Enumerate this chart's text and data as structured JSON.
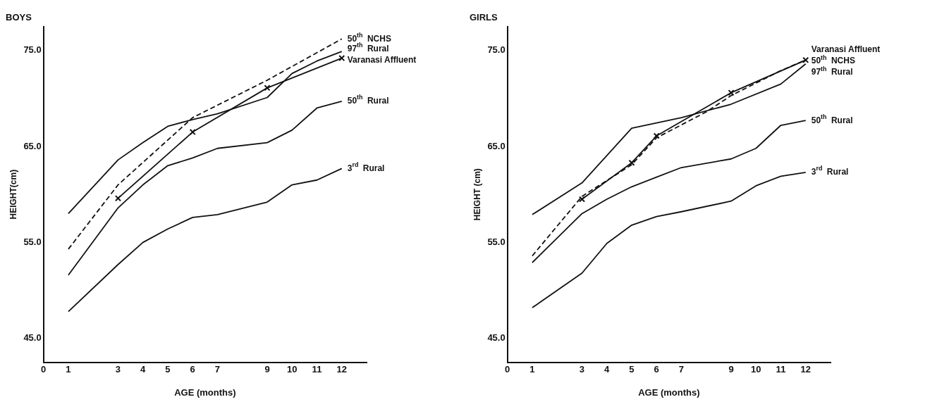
{
  "chart_data": [
    {
      "type": "line",
      "title": "BOYS",
      "xlabel": "AGE (months)",
      "ylabel": "HEIGHT(cm)",
      "xlim": [
        0,
        13
      ],
      "xticks": [
        0,
        1,
        3,
        4,
        5,
        6,
        7,
        9,
        10,
        11,
        12
      ],
      "ylim": [
        42.5,
        77.5
      ],
      "yticks": [
        {
          "value": 45,
          "label": "45.0"
        },
        {
          "value": 55,
          "label": "55.0"
        },
        {
          "value": 65,
          "label": "65.0"
        },
        {
          "value": 75,
          "label": "75.0"
        }
      ],
      "grid": false,
      "legend": false,
      "series": [
        {
          "name": "50$^{th}$ NCHS",
          "color": "#111111",
          "line_style": "dashed",
          "marker": "none",
          "x": [
            1,
            3,
            6,
            9,
            12
          ],
          "values": [
            54.3,
            61.0,
            68.0,
            71.9,
            76.2
          ]
        },
        {
          "name": "97$^{th}$ Rural",
          "color": "#111111",
          "line_style": "solid",
          "marker": "none",
          "x": [
            1,
            3,
            4,
            5,
            6,
            7,
            9,
            10,
            11,
            12
          ],
          "values": [
            58.0,
            63.6,
            65.4,
            67.1,
            67.8,
            68.4,
            70.1,
            72.6,
            73.9,
            74.9
          ]
        },
        {
          "name": "Varanasi Affluent",
          "color": "#111111",
          "line_style": "solid",
          "marker": "cross",
          "x": [
            3,
            6,
            9,
            12
          ],
          "values": [
            59.6,
            66.5,
            71.1,
            74.2
          ]
        },
        {
          "name": "50$^{th}$ Rural",
          "color": "#111111",
          "line_style": "solid",
          "marker": "none",
          "x": [
            1,
            3,
            4,
            5,
            6,
            7,
            9,
            10,
            11,
            12
          ],
          "values": [
            51.6,
            58.6,
            61.0,
            63.0,
            63.8,
            64.8,
            65.4,
            66.7,
            69.0,
            69.7
          ]
        },
        {
          "name": "3$^{rd}$ Rural",
          "color": "#111111",
          "line_style": "solid",
          "marker": "none",
          "x": [
            1,
            3,
            4,
            5,
            6,
            7,
            9,
            10,
            11,
            12
          ],
          "values": [
            47.8,
            52.7,
            55.0,
            56.4,
            57.6,
            57.9,
            59.2,
            61.0,
            61.5,
            62.7
          ]
        }
      ]
    },
    {
      "type": "line",
      "title": "GIRLS",
      "xlabel": "AGE (months)",
      "ylabel": "HEIGHT (cm)",
      "xlim": [
        0,
        13
      ],
      "xticks": [
        0,
        1,
        3,
        4,
        5,
        6,
        7,
        9,
        10,
        11,
        12
      ],
      "ylim": [
        42.5,
        77.5
      ],
      "yticks": [
        {
          "value": 45,
          "label": "45.0"
        },
        {
          "value": 55,
          "label": "55.0"
        },
        {
          "value": 65,
          "label": "65.0"
        },
        {
          "value": 75,
          "label": "75.0"
        }
      ],
      "grid": false,
      "legend": false,
      "series": [
        {
          "name": "Varanasi Affluent",
          "color": "#111111",
          "line_style": "solid",
          "marker": "cross",
          "x": [
            3,
            5,
            6,
            9,
            12
          ],
          "values": [
            59.5,
            63.3,
            66.1,
            70.6,
            74.0
          ]
        },
        {
          "name": "50$^{th}$ NCHS",
          "color": "#111111",
          "line_style": "dashed",
          "marker": "none",
          "x": [
            1,
            3,
            5,
            6,
            8,
            9,
            11,
            12
          ],
          "values": [
            53.6,
            59.8,
            63.1,
            65.9,
            68.6,
            70.3,
            72.9,
            74.0
          ]
        },
        {
          "name": "97$^{th}$ Rural",
          "color": "#111111",
          "line_style": "solid",
          "marker": "none",
          "x": [
            1,
            3,
            5,
            7,
            9,
            11,
            12
          ],
          "values": [
            57.9,
            61.2,
            66.9,
            68.0,
            69.4,
            71.5,
            73.6
          ]
        },
        {
          "name": "50$^{th}$ Rural",
          "color": "#111111",
          "line_style": "solid",
          "marker": "none",
          "x": [
            1,
            3,
            4,
            5,
            6,
            7,
            9,
            10,
            11,
            12
          ],
          "values": [
            52.9,
            58.0,
            59.5,
            60.8,
            61.8,
            62.8,
            63.7,
            64.8,
            67.2,
            67.7
          ]
        },
        {
          "name": "3$^{rd}$ Rural",
          "color": "#111111",
          "line_style": "solid",
          "marker": "none",
          "x": [
            1,
            3,
            4,
            5,
            6,
            7,
            9,
            10,
            11,
            12
          ],
          "values": [
            48.2,
            51.8,
            54.9,
            56.8,
            57.7,
            58.2,
            59.3,
            60.9,
            61.9,
            62.3
          ]
        }
      ]
    }
  ]
}
